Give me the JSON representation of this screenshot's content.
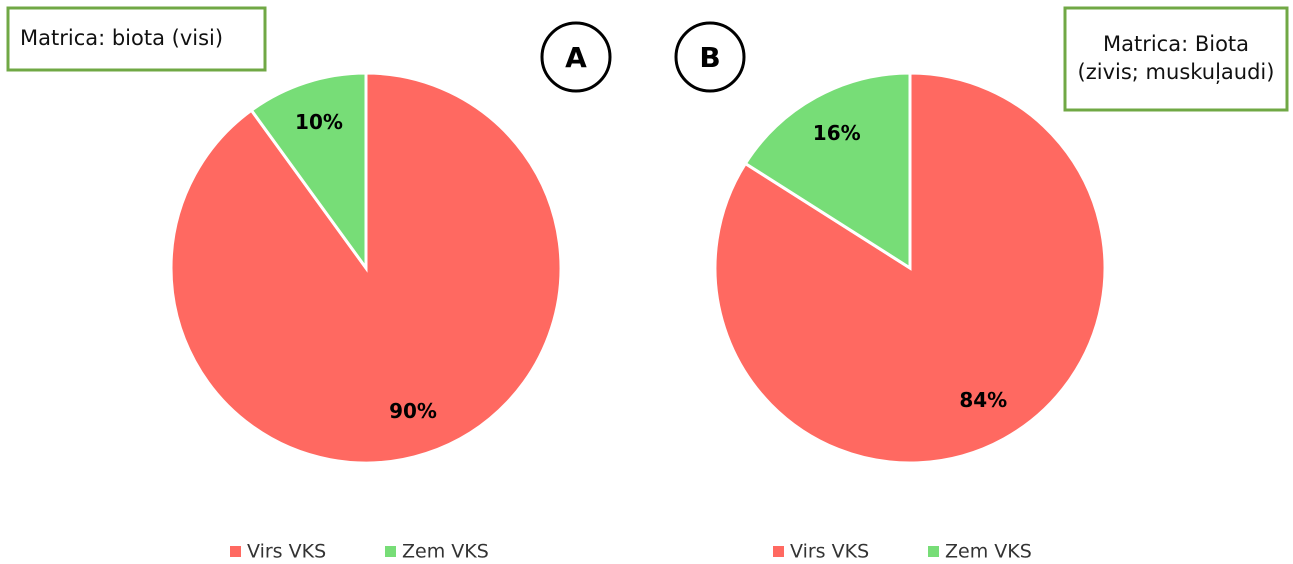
{
  "chart_data": [
    {
      "type": "pie",
      "panel_label": "A",
      "annotation": [
        "Matrica: biota (visi)"
      ],
      "categories": [
        "Virs VKS",
        "Zem VKS"
      ],
      "values": [
        90,
        10
      ],
      "value_labels": [
        "90%",
        "10%"
      ],
      "colors": [
        "#ff6961",
        "#77dd77"
      ]
    },
    {
      "type": "pie",
      "panel_label": "B",
      "annotation": [
        "Matrica: Biota",
        "(zivis; muskuļaudi)"
      ],
      "categories": [
        "Virs VKS",
        "Zem VKS"
      ],
      "values": [
        84,
        16
      ],
      "value_labels": [
        "84%",
        "16%"
      ],
      "colors": [
        "#ff6961",
        "#77dd77"
      ]
    }
  ]
}
